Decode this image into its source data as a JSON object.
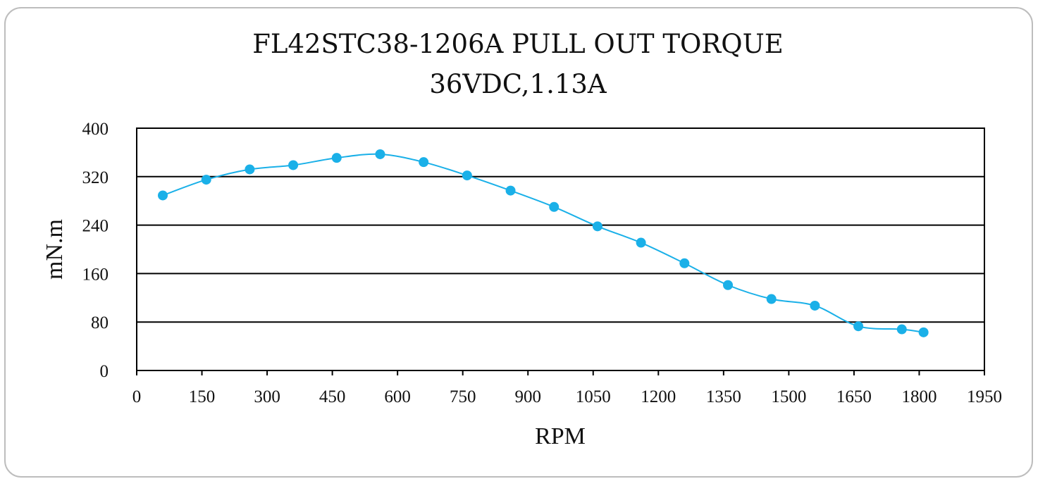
{
  "chart_data": {
    "type": "line",
    "title": "FL42STC38-1206A PULL OUT TORQUE",
    "subtitle": "36VDC,1.13A",
    "xlabel": "RPM",
    "ylabel": "mN.m",
    "xlim": [
      0,
      1950
    ],
    "ylim": [
      0,
      400
    ],
    "xticks": [
      0,
      150,
      300,
      450,
      600,
      750,
      900,
      1050,
      1200,
      1350,
      1500,
      1650,
      1800,
      1950
    ],
    "yticks": [
      0,
      80,
      160,
      240,
      320,
      400
    ],
    "grid": "horizontal",
    "series": [
      {
        "color": "#1ab0e8",
        "points": [
          [
            60,
            289
          ],
          [
            160,
            315
          ],
          [
            260,
            332
          ],
          [
            360,
            339
          ],
          [
            460,
            351
          ],
          [
            560,
            357
          ],
          [
            660,
            344
          ],
          [
            760,
            322
          ],
          [
            860,
            297
          ],
          [
            960,
            270
          ],
          [
            1060,
            238
          ],
          [
            1160,
            211
          ],
          [
            1260,
            177
          ],
          [
            1360,
            141
          ],
          [
            1460,
            118
          ],
          [
            1560,
            107
          ],
          [
            1660,
            73
          ],
          [
            1760,
            68
          ],
          [
            1810,
            63
          ]
        ]
      }
    ]
  }
}
